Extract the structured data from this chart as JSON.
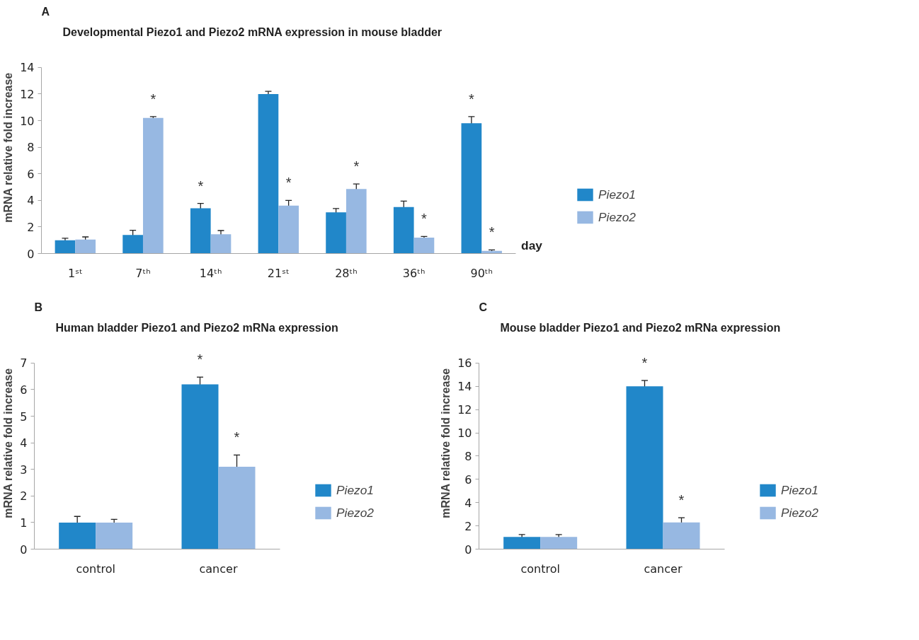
{
  "chart_data": [
    {
      "type": "bar",
      "title": "Developmental Piezo1 and Piezo2 mRNA expression in mouse bladder",
      "ylabel": "mRNA relative fold increase",
      "xlabel": "day",
      "categories": [
        "1ˢᵗ",
        "7ᵗʰ",
        "14ᵗʰ",
        "21ˢᵗ",
        "28ᵗʰ",
        "36ᵗʰ",
        "90ᵗʰ"
      ],
      "series": [
        {
          "name": "Piezo1",
          "color": "#2187c9",
          "values": [
            1.0,
            1.4,
            3.4,
            12.0,
            3.1,
            3.5,
            9.8
          ],
          "errors": [
            0.15,
            0.35,
            0.37,
            0.2,
            0.28,
            0.44,
            0.5
          ],
          "value_labels": [
            null,
            null,
            "*",
            null,
            null,
            null,
            "*"
          ]
        },
        {
          "name": "Piezo2",
          "color": "#97b8e2",
          "values": [
            1.05,
            10.2,
            1.45,
            3.6,
            4.85,
            1.2,
            0.2
          ],
          "errors": [
            0.2,
            0.1,
            0.28,
            0.4,
            0.38,
            0.08,
            0.07
          ],
          "value_labels": [
            null,
            "*",
            null,
            "*",
            "*",
            "*",
            "*"
          ]
        }
      ],
      "ylim": [
        0,
        14
      ],
      "yticks": [
        0,
        2,
        4,
        6,
        8,
        10,
        12,
        14
      ],
      "grid": false,
      "legend": "right",
      "annotations": [
        "A"
      ]
    },
    {
      "type": "bar",
      "title": "Human bladder Piezo1 and Piezo2 mRNa expression",
      "ylabel": "mRNA relative fold increase",
      "categories": [
        "control",
        "cancer"
      ],
      "series": [
        {
          "name": "Piezo1",
          "color": "#2187c9",
          "values": [
            1.0,
            6.2
          ],
          "errors": [
            0.23,
            0.27
          ],
          "value_labels": [
            null,
            "*"
          ]
        },
        {
          "name": "Piezo2",
          "color": "#97b8e2",
          "values": [
            1.0,
            3.1
          ],
          "errors": [
            0.12,
            0.44
          ],
          "value_labels": [
            null,
            "*"
          ]
        }
      ],
      "ylim": [
        0,
        7
      ],
      "yticks": [
        0,
        1,
        2,
        3,
        4,
        5,
        6,
        7
      ],
      "grid": false,
      "legend": "right",
      "annotations": [
        "B"
      ]
    },
    {
      "type": "bar",
      "title": "Mouse bladder Piezo1 and Piezo2 mRNa expression",
      "ylabel": "mRNA relative fold increase",
      "categories": [
        "control",
        "cancer"
      ],
      "series": [
        {
          "name": "Piezo1",
          "color": "#2187c9",
          "values": [
            1.05,
            14.0
          ],
          "errors": [
            0.2,
            0.5
          ],
          "value_labels": [
            null,
            "*"
          ]
        },
        {
          "name": "Piezo2",
          "color": "#97b8e2",
          "values": [
            1.05,
            2.3
          ],
          "errors": [
            0.2,
            0.4
          ],
          "value_labels": [
            null,
            "*"
          ]
        }
      ],
      "ylim": [
        0,
        16
      ],
      "yticks": [
        0,
        2,
        4,
        6,
        8,
        10,
        12,
        14,
        16
      ],
      "grid": false,
      "legend": "right",
      "annotations": [
        "C"
      ]
    }
  ]
}
